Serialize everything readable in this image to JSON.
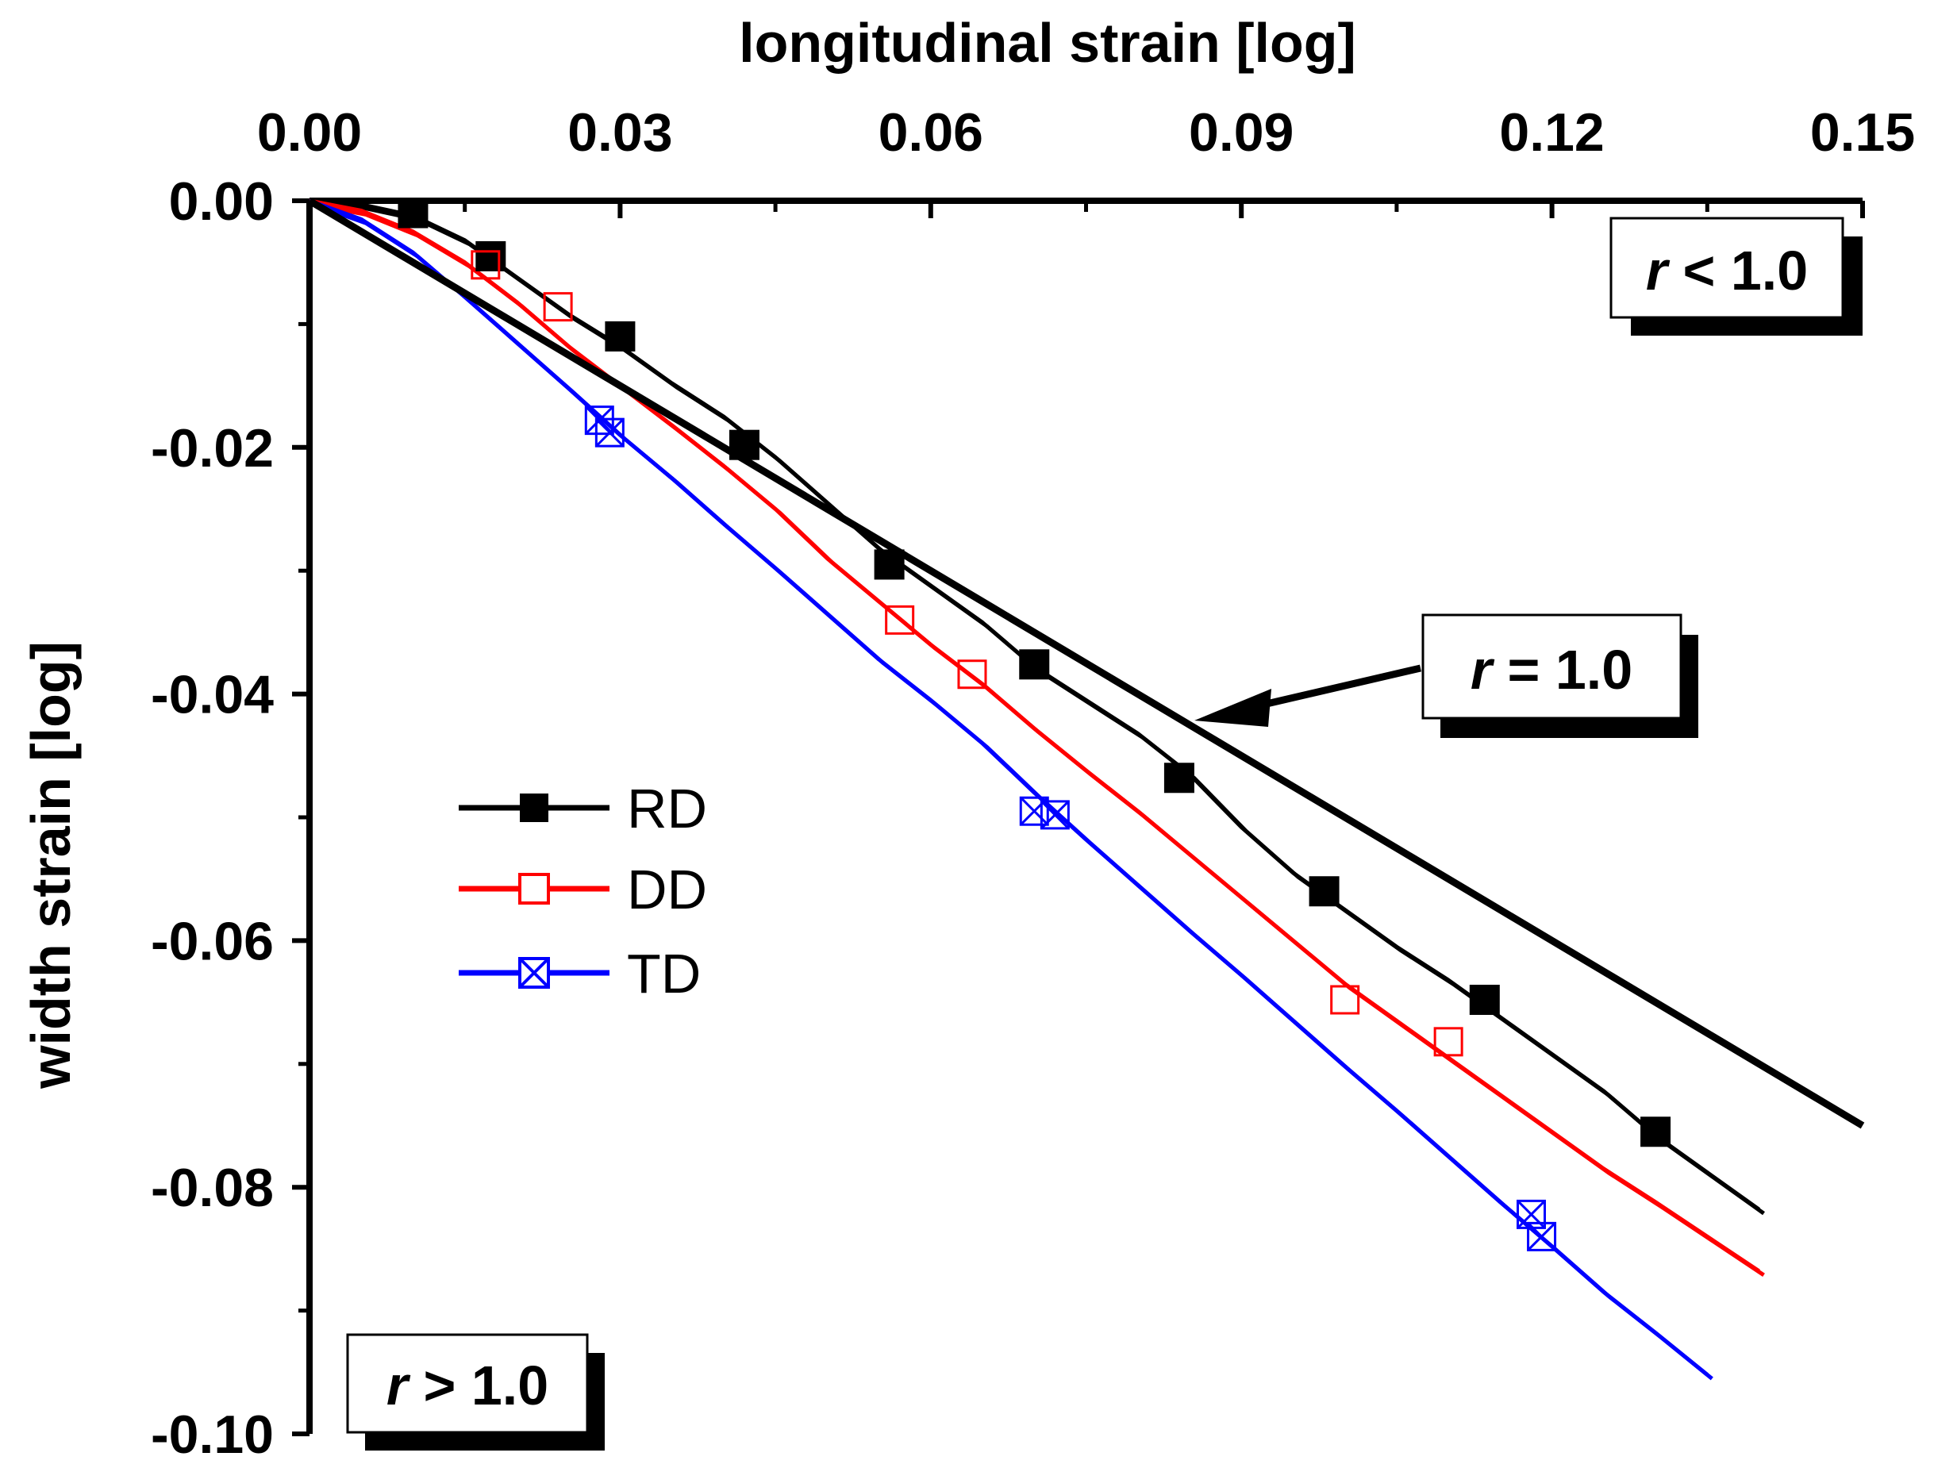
{
  "chart_data": {
    "type": "line",
    "xlabel": "longitudinal strain [log]",
    "ylabel": "width strain [log]",
    "xlim": [
      0,
      0.15
    ],
    "ylim": [
      -0.1,
      0
    ],
    "xticks": [
      0.0,
      0.03,
      0.06,
      0.09,
      0.12,
      0.15
    ],
    "yticks": [
      0.0,
      -0.02,
      -0.04,
      -0.06,
      -0.08,
      -0.1
    ],
    "x_tick_labels": [
      "0.00",
      "0.03",
      "0.06",
      "0.09",
      "0.12",
      "0.15"
    ],
    "y_tick_labels": [
      "0.00",
      "-0.02",
      "-0.04",
      "-0.06",
      "-0.08",
      "-0.10"
    ],
    "legend_position": "middle-left",
    "series": [
      {
        "name": "RD",
        "color": "#000000",
        "marker": "filled-square",
        "x": [
          0,
          0.005,
          0.01,
          0.015,
          0.02,
          0.025,
          0.03,
          0.035,
          0.04,
          0.045,
          0.05,
          0.055,
          0.06,
          0.065,
          0.07,
          0.075,
          0.08,
          0.085,
          0.09,
          0.095,
          0.1,
          0.105,
          0.11,
          0.115,
          0.12,
          0.125,
          0.13,
          0.135,
          0.14
        ],
        "values": [
          0,
          -0.0003,
          -0.0012,
          -0.0032,
          -0.0062,
          -0.0092,
          -0.0118,
          -0.0148,
          -0.0175,
          -0.0208,
          -0.0245,
          -0.0282,
          -0.0312,
          -0.0342,
          -0.0378,
          -0.0405,
          -0.0432,
          -0.0465,
          -0.0508,
          -0.0545,
          -0.0575,
          -0.0605,
          -0.0632,
          -0.0662,
          -0.0692,
          -0.0722,
          -0.0758,
          -0.0788,
          -0.0818
        ],
        "marker_x": [
          0.01,
          0.0175,
          0.03,
          0.042,
          0.056,
          0.07,
          0.084,
          0.098,
          0.1135,
          0.13
        ],
        "marker_values": [
          -0.001,
          -0.0045,
          -0.011,
          -0.0198,
          -0.0295,
          -0.0376,
          -0.0468,
          -0.056,
          -0.0648,
          -0.0755
        ]
      },
      {
        "name": "DD",
        "color": "#ff0000",
        "marker": "open-square",
        "x": [
          0,
          0.005,
          0.01,
          0.015,
          0.02,
          0.025,
          0.03,
          0.035,
          0.04,
          0.045,
          0.05,
          0.055,
          0.06,
          0.065,
          0.07,
          0.075,
          0.08,
          0.085,
          0.09,
          0.095,
          0.1,
          0.105,
          0.11,
          0.115,
          0.12,
          0.125,
          0.13,
          0.135,
          0.14
        ],
        "values": [
          0,
          -0.0008,
          -0.0025,
          -0.005,
          -0.0082,
          -0.0118,
          -0.015,
          -0.0182,
          -0.0215,
          -0.025,
          -0.029,
          -0.0325,
          -0.036,
          -0.0392,
          -0.0428,
          -0.0462,
          -0.0495,
          -0.053,
          -0.0565,
          -0.06,
          -0.0635,
          -0.0665,
          -0.0695,
          -0.0725,
          -0.0755,
          -0.0785,
          -0.0812,
          -0.084,
          -0.0868
        ],
        "marker_x": [
          0.017,
          0.024,
          0.057,
          0.064,
          0.1,
          0.11
        ],
        "marker_values": [
          -0.0052,
          -0.0086,
          -0.034,
          -0.0384,
          -0.0648,
          -0.0682
        ]
      },
      {
        "name": "TD",
        "color": "#0000ff",
        "marker": "crossed-square",
        "x": [
          0,
          0.005,
          0.01,
          0.015,
          0.02,
          0.025,
          0.03,
          0.035,
          0.04,
          0.045,
          0.05,
          0.055,
          0.06,
          0.065,
          0.07,
          0.075,
          0.08,
          0.085,
          0.09,
          0.095,
          0.1,
          0.105,
          0.11,
          0.115,
          0.12,
          0.125,
          0.13,
          0.135
        ],
        "values": [
          0,
          -0.0015,
          -0.0042,
          -0.0078,
          -0.0115,
          -0.0152,
          -0.019,
          -0.0225,
          -0.0262,
          -0.0298,
          -0.0335,
          -0.0372,
          -0.0405,
          -0.044,
          -0.048,
          -0.0518,
          -0.0555,
          -0.0592,
          -0.0628,
          -0.0665,
          -0.0702,
          -0.0738,
          -0.0775,
          -0.0812,
          -0.0848,
          -0.0885,
          -0.0918,
          -0.0952
        ],
        "marker_x": [
          0.028,
          0.029,
          0.07,
          0.072,
          0.118,
          0.119
        ],
        "marker_values": [
          -0.0178,
          -0.0188,
          -0.0495,
          -0.0498,
          -0.0822,
          -0.084
        ]
      },
      {
        "name": "r = 1.0",
        "color": "#000000",
        "marker": "none",
        "x": [
          0,
          0.15
        ],
        "values": [
          0,
          -0.075
        ]
      }
    ],
    "annotations": [
      {
        "id": "r-less",
        "text_symbol": "r",
        "text_rest": " < 1.0"
      },
      {
        "id": "r-equal",
        "text_symbol": "r",
        "text_rest": " = 1.0"
      },
      {
        "id": "r-greater",
        "text_symbol": "r",
        "text_rest": " > 1.0"
      }
    ]
  }
}
